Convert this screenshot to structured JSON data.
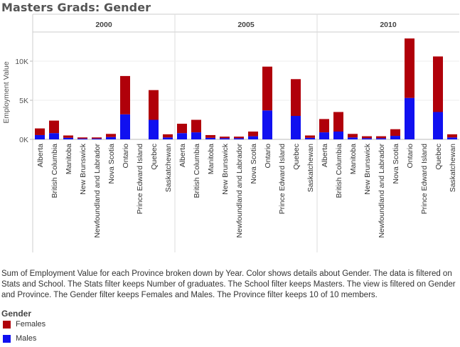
{
  "title": "Masters Grads: Gender",
  "caption": "Sum of Employment Value for each Province broken down by Year.  Color shows details about Gender. The data is filtered on Stats and School. The Stats filter keeps Number of graduates. The School filter keeps Masters. The view is filtered on Gender and Province. The Gender filter keeps Females and Males. The Province filter keeps 10 of 10 members.",
  "legend": {
    "title": "Gender",
    "items": [
      {
        "label": "Females",
        "color": "#b0000a"
      },
      {
        "label": "Males",
        "color": "#1010f0"
      }
    ]
  },
  "chart_data": {
    "type": "bar",
    "stacked": true,
    "title": "Masters Grads: Gender",
    "xlabel": "",
    "ylabel": "Employment Value",
    "ylim": [
      0,
      13500
    ],
    "yticks": [
      0,
      5000,
      10000
    ],
    "ytick_labels": [
      "0K",
      "5K",
      "10K"
    ],
    "panels": [
      "2000",
      "2005",
      "2010"
    ],
    "categories": [
      "Alberta",
      "British Columbia",
      "Manitoba",
      "New Brunswick",
      "Newfoundland and Labrador",
      "Nova Scotia",
      "Ontario",
      "Prince Edward Island",
      "Quebec",
      "Saskatchewan"
    ],
    "series": [
      {
        "name": "Males",
        "color": "#1010f0",
        "values": [
          [
            550,
            800,
            200,
            100,
            100,
            300,
            3200,
            0,
            2500,
            250
          ],
          [
            800,
            900,
            200,
            150,
            150,
            400,
            3700,
            0,
            3000,
            200
          ],
          [
            900,
            1000,
            250,
            150,
            150,
            450,
            5300,
            0,
            3500,
            250
          ]
        ]
      },
      {
        "name": "Females",
        "color": "#b0000a",
        "values": [
          [
            850,
            1600,
            300,
            150,
            150,
            400,
            4900,
            0,
            3800,
            400
          ],
          [
            1200,
            1600,
            350,
            200,
            200,
            600,
            5600,
            0,
            4700,
            300
          ],
          [
            1700,
            2500,
            450,
            250,
            250,
            850,
            7600,
            0,
            7100,
            400
          ]
        ]
      }
    ],
    "grid": true,
    "legend_position": "bottom-left"
  }
}
